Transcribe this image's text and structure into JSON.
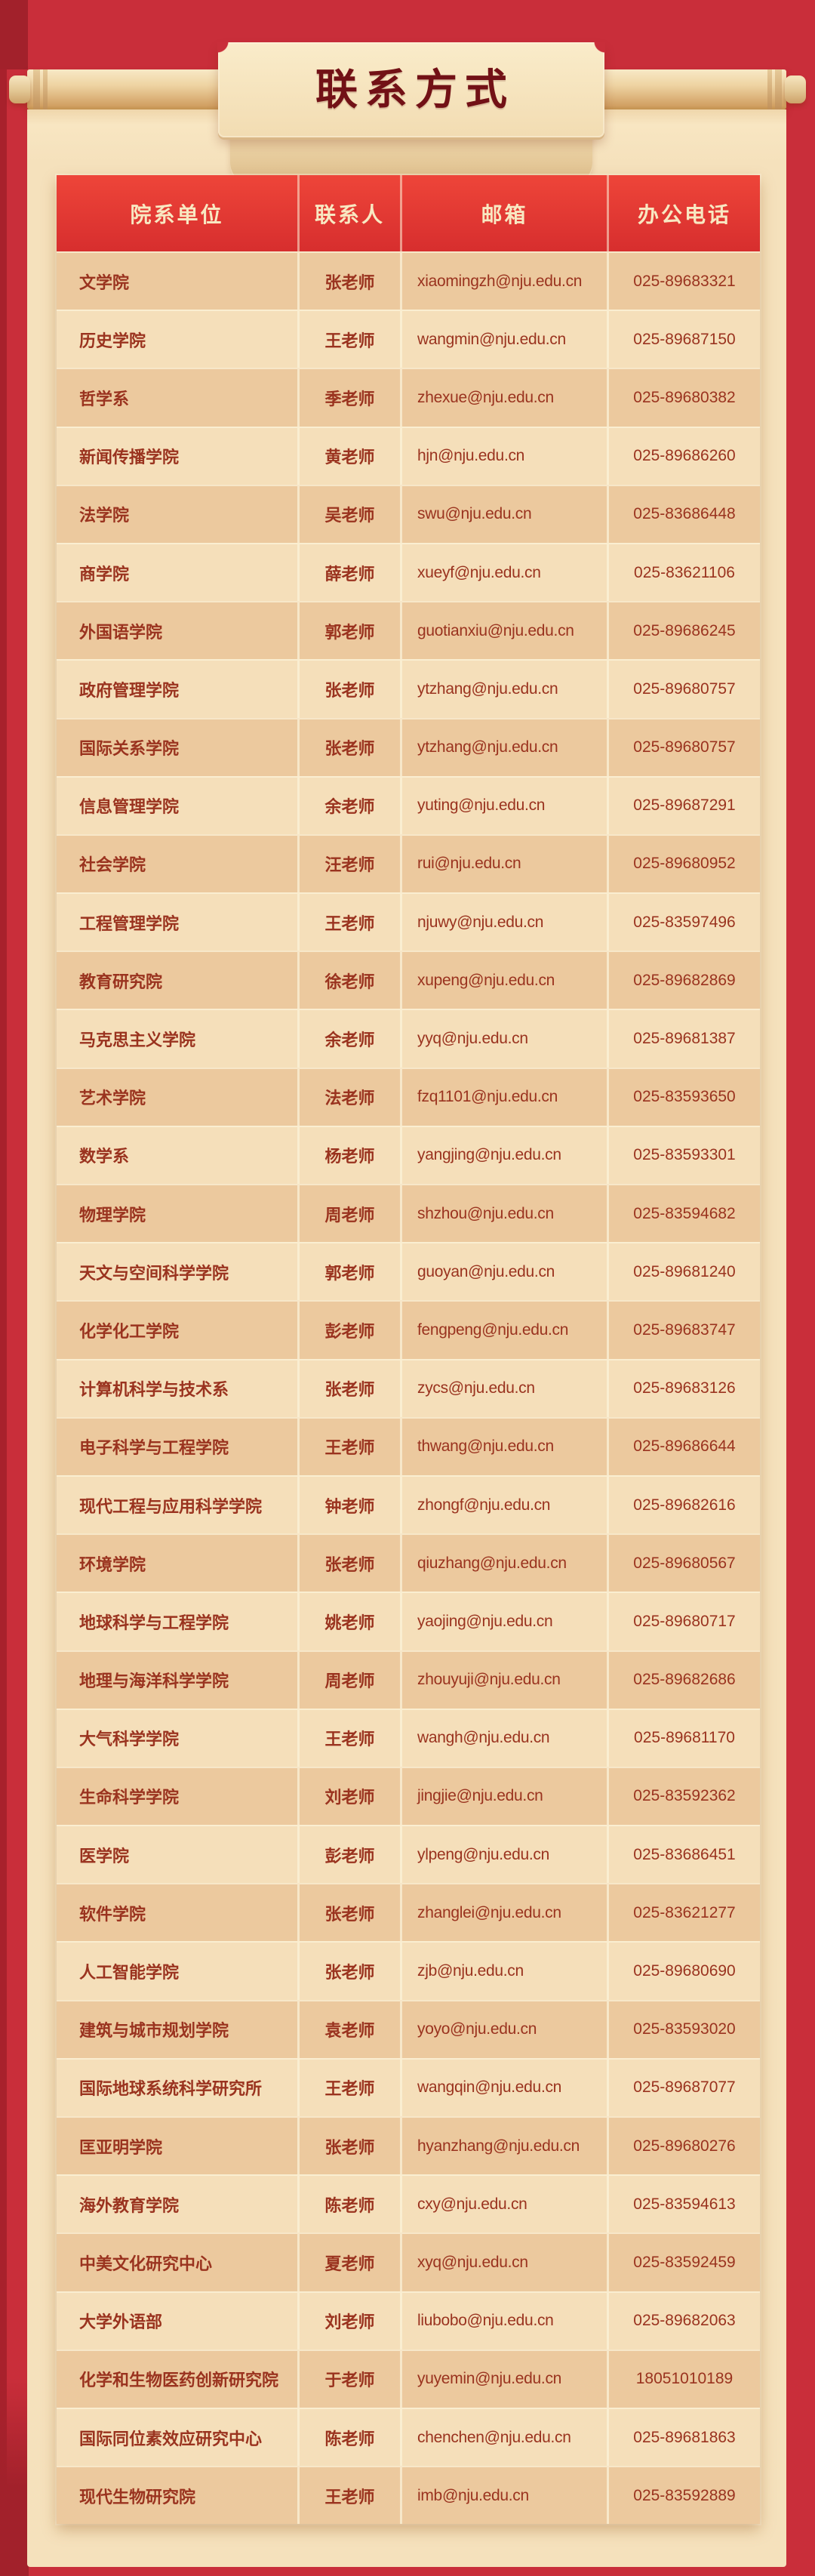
{
  "title": "联系方式",
  "table": {
    "headers": [
      "院系单位",
      "联系人",
      "邮箱",
      "办公电话"
    ],
    "rows": [
      {
        "dept": "文学院",
        "contact": "张老师",
        "email": "xiaomingzh@nju.edu.cn",
        "phone": "025-89683321"
      },
      {
        "dept": "历史学院",
        "contact": "王老师",
        "email": "wangmin@nju.edu.cn",
        "phone": "025-89687150"
      },
      {
        "dept": "哲学系",
        "contact": "季老师",
        "email": "zhexue@nju.edu.cn",
        "phone": "025-89680382"
      },
      {
        "dept": "新闻传播学院",
        "contact": "黄老师",
        "email": "hjn@nju.edu.cn",
        "phone": "025-89686260"
      },
      {
        "dept": "法学院",
        "contact": "吴老师",
        "email": "swu@nju.edu.cn",
        "phone": "025-83686448"
      },
      {
        "dept": "商学院",
        "contact": "薛老师",
        "email": "xueyf@nju.edu.cn",
        "phone": "025-83621106"
      },
      {
        "dept": "外国语学院",
        "contact": "郭老师",
        "email": "guotianxiu@nju.edu.cn",
        "phone": "025-89686245"
      },
      {
        "dept": "政府管理学院",
        "contact": "张老师",
        "email": "ytzhang@nju.edu.cn",
        "phone": "025-89680757"
      },
      {
        "dept": "国际关系学院",
        "contact": "张老师",
        "email": "ytzhang@nju.edu.cn",
        "phone": "025-89680757"
      },
      {
        "dept": "信息管理学院",
        "contact": "余老师",
        "email": "yuting@nju.edu.cn",
        "phone": "025-89687291"
      },
      {
        "dept": "社会学院",
        "contact": "汪老师",
        "email": "rui@nju.edu.cn",
        "phone": "025-89680952"
      },
      {
        "dept": "工程管理学院",
        "contact": "王老师",
        "email": "njuwy@nju.edu.cn",
        "phone": "025-83597496"
      },
      {
        "dept": "教育研究院",
        "contact": "徐老师",
        "email": "xupeng@nju.edu.cn",
        "phone": "025-89682869"
      },
      {
        "dept": "马克思主义学院",
        "contact": "余老师",
        "email": "yyq@nju.edu.cn",
        "phone": "025-89681387"
      },
      {
        "dept": "艺术学院",
        "contact": "法老师",
        "email": "fzq1101@nju.edu.cn",
        "phone": "025-83593650"
      },
      {
        "dept": "数学系",
        "contact": "杨老师",
        "email": "yangjing@nju.edu.cn",
        "phone": "025-83593301"
      },
      {
        "dept": "物理学院",
        "contact": "周老师",
        "email": "shzhou@nju.edu.cn",
        "phone": "025-83594682"
      },
      {
        "dept": "天文与空间科学学院",
        "contact": "郭老师",
        "email": "guoyan@nju.edu.cn",
        "phone": "025-89681240"
      },
      {
        "dept": "化学化工学院",
        "contact": "彭老师",
        "email": "fengpeng@nju.edu.cn",
        "phone": "025-89683747"
      },
      {
        "dept": "计算机科学与技术系",
        "contact": "张老师",
        "email": "zycs@nju.edu.cn",
        "phone": "025-89683126"
      },
      {
        "dept": "电子科学与工程学院",
        "contact": "王老师",
        "email": "thwang@nju.edu.cn",
        "phone": "025-89686644"
      },
      {
        "dept": "现代工程与应用科学学院",
        "contact": "钟老师",
        "email": "zhongf@nju.edu.cn",
        "phone": "025-89682616"
      },
      {
        "dept": "环境学院",
        "contact": "张老师",
        "email": "qiuzhang@nju.edu.cn",
        "phone": "025-89680567"
      },
      {
        "dept": "地球科学与工程学院",
        "contact": "姚老师",
        "email": "yaojing@nju.edu.cn",
        "phone": "025-89680717"
      },
      {
        "dept": "地理与海洋科学学院",
        "contact": "周老师",
        "email": "zhouyuji@nju.edu.cn",
        "phone": "025-89682686"
      },
      {
        "dept": "大气科学学院",
        "contact": "王老师",
        "email": "wangh@nju.edu.cn",
        "phone": "025-89681170"
      },
      {
        "dept": "生命科学学院",
        "contact": "刘老师",
        "email": "jingjie@nju.edu.cn",
        "phone": "025-83592362"
      },
      {
        "dept": "医学院",
        "contact": "彭老师",
        "email": "ylpeng@nju.edu.cn",
        "phone": "025-83686451"
      },
      {
        "dept": "软件学院",
        "contact": "张老师",
        "email": "zhanglei@nju.edu.cn",
        "phone": "025-83621277"
      },
      {
        "dept": "人工智能学院",
        "contact": "张老师",
        "email": "zjb@nju.edu.cn",
        "phone": "025-89680690"
      },
      {
        "dept": "建筑与城市规划学院",
        "contact": "袁老师",
        "email": "yoyo@nju.edu.cn",
        "phone": "025-83593020"
      },
      {
        "dept": "国际地球系统科学研究所",
        "contact": "王老师",
        "email": "wangqin@nju.edu.cn",
        "phone": "025-89687077"
      },
      {
        "dept": "匡亚明学院",
        "contact": "张老师",
        "email": "hyanzhang@nju.edu.cn",
        "phone": "025-89680276"
      },
      {
        "dept": "海外教育学院",
        "contact": "陈老师",
        "email": "cxy@nju.edu.cn",
        "phone": "025-83594613"
      },
      {
        "dept": "中美文化研究中心",
        "contact": "夏老师",
        "email": "xyq@nju.edu.cn",
        "phone": "025-83592459"
      },
      {
        "dept": "大学外语部",
        "contact": "刘老师",
        "email": "liubobo@nju.edu.cn",
        "phone": "025-89682063"
      },
      {
        "dept": "化学和生物医药创新研究院",
        "contact": "于老师",
        "email": "yuyemin@nju.edu.cn",
        "phone": "18051010189"
      },
      {
        "dept": "国际同位素效应研究中心",
        "contact": "陈老师",
        "email": "chenchen@nju.edu.cn",
        "phone": "025-89681863"
      },
      {
        "dept": "现代生物研究院",
        "contact": "王老师",
        "email": "imb@nju.edu.cn",
        "phone": "025-83592889"
      }
    ]
  },
  "colors": {
    "background_red": "#c92e3a",
    "edge_shadow_red": "#a2212b",
    "header_gradient_top": "#ee4539",
    "header_gradient_bottom": "#d72e2e",
    "header_text": "#f8e8c2",
    "paper_cream": "#f5e1bc",
    "row_dark": "#ecc99e",
    "row_light": "#f5dfba",
    "cell_text": "#9a331f",
    "title_text": "#721116"
  }
}
